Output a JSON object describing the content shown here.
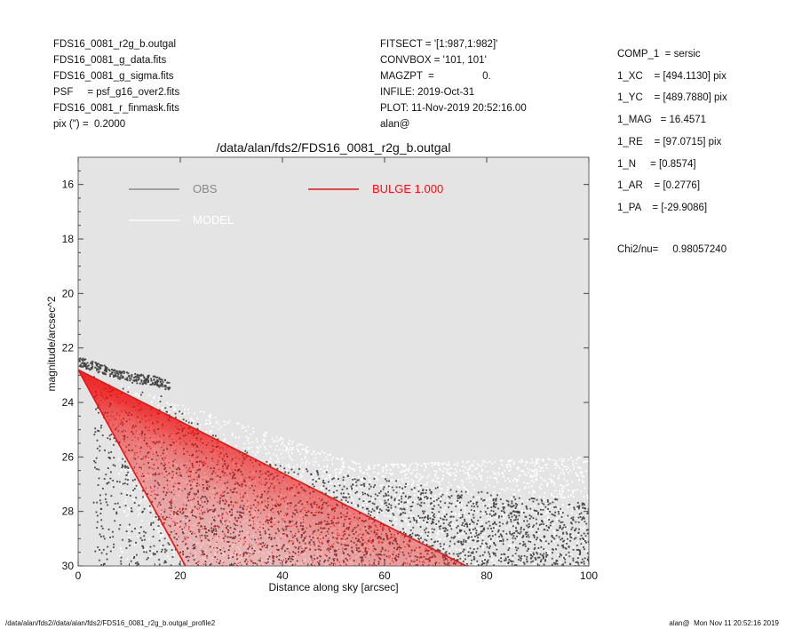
{
  "header_left": [
    "FDS16_0081_r2g_b.outgal",
    "FDS16_0081_g_data.fits",
    "FDS16_0081_g_sigma.fits",
    "PSF     = psf_g16_over2.fits",
    "FDS16_0081_r_finmask.fits",
    "pix (\") =  0.2000"
  ],
  "header_mid": [
    "FITSECT = '[1:987,1:982]'",
    "CONVBOX = '101, 101'",
    "MAGZPT  =                 0.",
    "INFILE: 2019-Oct-31",
    "PLOT: 11-Nov-2019 20:52:16.00",
    "alan@"
  ],
  "params": [
    "COMP_1  = sersic",
    "1_XC    = [494.1130] pix",
    "1_YC    = [489.7880] pix",
    "1_MAG   = 16.4571",
    "1_RE    = [97.0715] pix",
    "1_N     = [0.8574]",
    "1_AR    = [0.2776]",
    "1_PA    = [-29.9086]"
  ],
  "chi2": "Chi2/nu=     0.98057240",
  "footer_left": "/data/alan/fds2//data/alan/fds2/FDS16_0081_r2g_b.outgal_profile2",
  "footer_right": "alan@  Mon Nov 11 20:52:16 2019",
  "chart_data": {
    "type": "scatter",
    "title": "/data/alan/fds2/FDS16_0081_r2g_b.outgal",
    "xlabel": "Distance along sky [arcsec]",
    "ylabel": "magnitude/arcsec^2",
    "xlim": [
      0,
      100
    ],
    "ylim": [
      30,
      15
    ],
    "ylim_note": "inverted: fainter magnitude at bottom",
    "x_ticks": [
      0,
      20,
      40,
      60,
      80,
      100
    ],
    "y_ticks": [
      16,
      18,
      20,
      22,
      24,
      26,
      28,
      30
    ],
    "background": "#e4e4e4",
    "legend": [
      {
        "name": "OBS",
        "color": "#888888",
        "line_color": "#777777"
      },
      {
        "name": "MODEL",
        "color": "#ffffff",
        "line_color": "#ffffff"
      },
      {
        "name": "BULGE  1.000",
        "color": "#ee1111",
        "line_color": "#ee1111"
      }
    ],
    "series": [
      {
        "name": "OBS",
        "color": "#444444",
        "description_points": [
          [
            0,
            22.5
          ],
          [
            5,
            22.8
          ],
          [
            10,
            23.1
          ],
          [
            15,
            23.2
          ],
          [
            18,
            23.4
          ],
          [
            20,
            24.0
          ],
          [
            30,
            25.2
          ],
          [
            40,
            26.0
          ],
          [
            50,
            26.3
          ],
          [
            60,
            26.5
          ],
          [
            70,
            26.8
          ],
          [
            80,
            27.0
          ],
          [
            90,
            27.2
          ],
          [
            100,
            27.3
          ]
        ],
        "scatter_floor": 30
      },
      {
        "name": "MODEL",
        "color": "#ffffff",
        "boundary": [
          [
            0,
            22.8
          ],
          [
            56,
            26.3
          ],
          [
            100,
            26.0
          ]
        ]
      },
      {
        "name": "BULGE  1.000",
        "color": "#ee1111",
        "upper_edge": [
          [
            0,
            22.8
          ],
          [
            76,
            30
          ]
        ],
        "lower_edge": [
          [
            0,
            22.8
          ],
          [
            21,
            30
          ]
        ]
      }
    ]
  }
}
